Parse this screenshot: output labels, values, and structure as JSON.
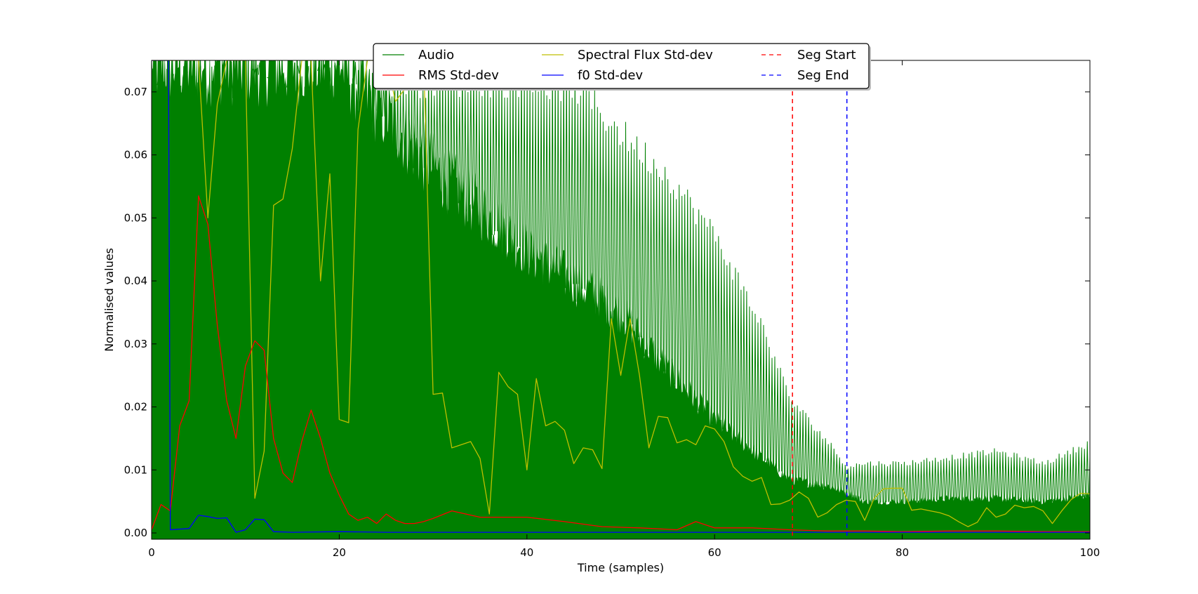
{
  "chart_data": {
    "type": "line",
    "title": "",
    "xlabel": "Time (samples)",
    "ylabel": "Normalised values",
    "xlim": [
      0,
      100
    ],
    "ylim": [
      -0.001,
      0.075
    ],
    "x_ticks": [
      0,
      20,
      40,
      60,
      80,
      100
    ],
    "x_tick_labels": [
      "0",
      "20",
      "40",
      "60",
      "80",
      "100"
    ],
    "y_ticks": [
      0.0,
      0.01,
      0.02,
      0.03,
      0.04,
      0.05,
      0.06,
      0.07
    ],
    "y_tick_labels": [
      "0.00",
      "0.01",
      "0.02",
      "0.03",
      "0.04",
      "0.05",
      "0.06",
      "0.07"
    ],
    "grid": false,
    "legend": {
      "placement": "top-center",
      "columns": 3
    },
    "audio": {
      "name": "Audio",
      "color": "#008000",
      "style": "dense-oscillation",
      "envelope_x": [
        0,
        5,
        10,
        20,
        30,
        40,
        45,
        50,
        55,
        60,
        65,
        68,
        72,
        74,
        76,
        80,
        85,
        90,
        95,
        100
      ],
      "envelope_peak": [
        0.075,
        0.075,
        0.075,
        0.075,
        0.075,
        0.075,
        0.074,
        0.066,
        0.059,
        0.049,
        0.034,
        0.022,
        0.015,
        0.011,
        0.0115,
        0.0115,
        0.0125,
        0.0135,
        0.0115,
        0.015
      ],
      "envelope_body": [
        0.075,
        0.075,
        0.075,
        0.075,
        0.058,
        0.045,
        0.04,
        0.035,
        0.026,
        0.018,
        0.012,
        0.0085,
        0.0075,
        0.0065,
        0.005,
        0.005,
        0.0055,
        0.0055,
        0.005,
        0.006
      ]
    },
    "series": [
      {
        "name": "RMS Std-dev",
        "color": "#ff0000",
        "x": [
          0,
          1,
          2,
          3,
          4,
          5,
          6,
          7,
          8,
          9,
          10,
          11,
          12,
          13,
          14,
          15,
          16,
          17,
          18,
          19,
          20,
          21,
          22,
          23,
          24,
          25,
          26,
          27,
          28,
          29,
          30,
          32,
          35,
          38,
          40,
          44,
          48,
          52,
          56,
          58,
          60,
          64,
          68,
          72,
          76,
          80,
          85,
          90,
          95,
          100
        ],
        "y": [
          0.0005,
          0.0045,
          0.0035,
          0.017,
          0.021,
          0.0535,
          0.049,
          0.033,
          0.021,
          0.015,
          0.0265,
          0.0305,
          0.029,
          0.015,
          0.0095,
          0.008,
          0.0145,
          0.0195,
          0.015,
          0.0095,
          0.006,
          0.003,
          0.002,
          0.0025,
          0.0015,
          0.003,
          0.002,
          0.0015,
          0.0015,
          0.0018,
          0.0023,
          0.0035,
          0.0025,
          0.0025,
          0.0025,
          0.0018,
          0.001,
          0.0008,
          0.0005,
          0.0018,
          0.0008,
          0.0008,
          0.0005,
          0.0003,
          0.0003,
          0.0002,
          0.0003,
          0.0003,
          0.0002,
          0.0002
        ]
      },
      {
        "name": "Spectral Flux Std-dev",
        "color": "#bfbf00",
        "x": [
          0,
          1,
          2,
          3,
          4,
          5,
          6,
          7,
          8,
          9,
          10,
          11,
          12,
          13,
          14,
          15,
          16,
          17,
          18,
          19,
          20,
          21,
          22,
          23,
          24,
          25,
          26,
          27,
          28,
          29,
          30,
          31,
          32,
          33,
          34,
          35,
          36,
          37,
          38,
          39,
          40,
          41,
          42,
          43,
          44,
          45,
          46,
          47,
          48,
          49,
          50,
          51,
          52,
          53,
          54,
          55,
          56,
          57,
          58,
          59,
          60,
          61,
          62,
          63,
          64,
          65,
          66,
          67,
          68,
          69,
          70,
          71,
          72,
          73,
          74,
          75,
          76,
          77,
          78,
          79,
          80,
          81,
          82,
          83,
          84,
          85,
          86,
          87,
          88,
          89,
          90,
          91,
          92,
          93,
          94,
          95,
          96,
          97,
          98,
          99,
          100
        ],
        "y": [
          0.075,
          0.075,
          0.075,
          0.075,
          0.075,
          0.075,
          0.05,
          0.068,
          0.075,
          0.075,
          0.075,
          0.0055,
          0.013,
          0.052,
          0.053,
          0.061,
          0.075,
          0.075,
          0.04,
          0.057,
          0.018,
          0.0175,
          0.064,
          0.075,
          0.075,
          0.075,
          0.0685,
          0.0705,
          0.075,
          0.075,
          0.022,
          0.0222,
          0.0135,
          0.014,
          0.0145,
          0.0118,
          0.003,
          0.0255,
          0.0232,
          0.022,
          0.01,
          0.0245,
          0.017,
          0.0177,
          0.0163,
          0.011,
          0.0135,
          0.0132,
          0.0102,
          0.034,
          0.025,
          0.034,
          0.025,
          0.0135,
          0.0185,
          0.0183,
          0.0143,
          0.0148,
          0.014,
          0.017,
          0.0165,
          0.0145,
          0.0105,
          0.009,
          0.0082,
          0.0088,
          0.0045,
          0.0046,
          0.0052,
          0.0065,
          0.0055,
          0.0025,
          0.0032,
          0.0045,
          0.0052,
          0.005,
          0.002,
          0.0055,
          0.007,
          0.0071,
          0.0071,
          0.0036,
          0.0038,
          0.0035,
          0.0032,
          0.0027,
          0.0018,
          0.001,
          0.0017,
          0.004,
          0.0025,
          0.003,
          0.0044,
          0.004,
          0.0042,
          0.0035,
          0.0015,
          0.0035,
          0.0053,
          0.0063,
          0.0062
        ]
      },
      {
        "name": "f0 Std-dev",
        "color": "#0000ff",
        "x": [
          0,
          1,
          1.8,
          2,
          4,
          5,
          6,
          7,
          8,
          9,
          10,
          11,
          12,
          13,
          15,
          20,
          25,
          30,
          40,
          50,
          60,
          70,
          80,
          90,
          100
        ],
        "y": [
          0.075,
          0.075,
          0.075,
          0.0005,
          0.0007,
          0.0028,
          0.0026,
          0.0023,
          0.0024,
          0.0001,
          0.0005,
          0.0022,
          0.0021,
          0.0002,
          0.0001,
          0.0002,
          0.0001,
          0.0001,
          0.0001,
          0.0001,
          0.0001,
          0.0001,
          0.0001,
          0.0001,
          0.0001
        ]
      }
    ],
    "vlines": [
      {
        "name": "Seg Start",
        "x": 68.3,
        "color": "#ff0000",
        "style": "dashed"
      },
      {
        "name": "Seg End",
        "x": 74.1,
        "color": "#0000ff",
        "style": "dashed"
      }
    ],
    "legend_entries": [
      {
        "label": "Audio",
        "color": "#008000",
        "style": "solid"
      },
      {
        "label": "RMS Std-dev",
        "color": "#ff0000",
        "style": "solid"
      },
      {
        "label": "Spectral Flux Std-dev",
        "color": "#bfbf00",
        "style": "solid"
      },
      {
        "label": "f0 Std-dev",
        "color": "#0000ff",
        "style": "solid"
      },
      {
        "label": "Seg Start",
        "color": "#ff0000",
        "style": "dashed"
      },
      {
        "label": "Seg End",
        "color": "#0000ff",
        "style": "dashed"
      }
    ]
  }
}
